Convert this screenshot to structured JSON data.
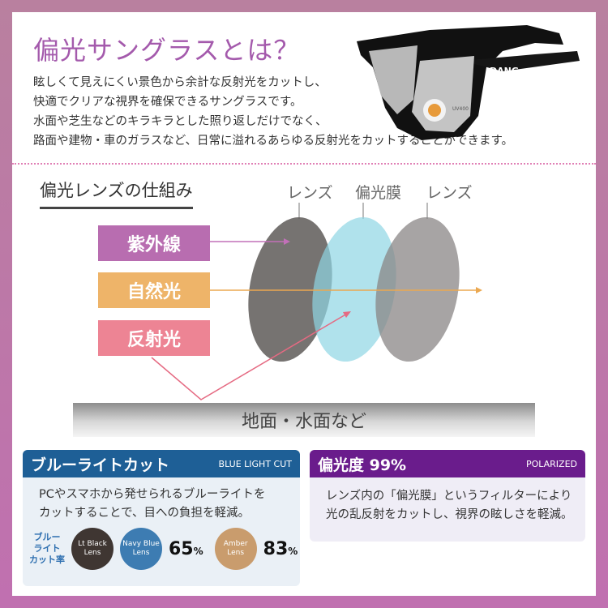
{
  "title": "偏光サングラスとは？",
  "intro": [
    "眩しくて見えにくい景色から余計な反射光をカットし、",
    "快適でクリアな視界を確保できるサングラスです。",
    "水面や芝生などのキラキラとした照り返しだけでなく、",
    "路面や建物・車のガラスなど、日常に溢れるあらゆる反射光をカットすることができます。"
  ],
  "product_image": {
    "brand_logo": "DANG",
    "lens_sticker": "UV400"
  },
  "mechanism": {
    "heading": "偏光レンズの仕組み",
    "lens_labels": [
      "レンズ",
      "偏光膜",
      "レンズ"
    ],
    "light_labels": [
      {
        "label": "紫外線",
        "color": "#b86db0"
      },
      {
        "label": "自然光",
        "color": "#eeb469"
      },
      {
        "label": "反射光",
        "color": "#ed8494"
      }
    ],
    "ground": "地面・水面など"
  },
  "blue_light": {
    "title": "ブルーライトカット",
    "subtitle": "BLUE LIGHT CUT",
    "header_color": "#1e5f96",
    "body": [
      "PCやスマホから発せられるブルーライトを",
      "カットすることで、目への負担を軽減。"
    ],
    "rate_label": [
      "ブルー",
      "ライト",
      "カット率"
    ],
    "lenses": [
      {
        "name": [
          "Lt Black",
          "Lens"
        ],
        "color": "#3f3632",
        "rate": null
      },
      {
        "name": [
          "Navy Blue",
          "Lens"
        ],
        "color": "#3d7cb2",
        "rate": "65"
      },
      {
        "name": [
          "Amber",
          "Lens"
        ],
        "color": "#c99c6d",
        "rate": "83"
      }
    ],
    "unit": "%"
  },
  "polarized": {
    "title": "偏光度 99%",
    "subtitle": "POLARIZED",
    "header_color": "#6a1c8c",
    "body": [
      "レンズ内の「偏光膜」というフィルターにより",
      "光の乱反射をカットし、視界の眩しさを軽減。"
    ]
  }
}
